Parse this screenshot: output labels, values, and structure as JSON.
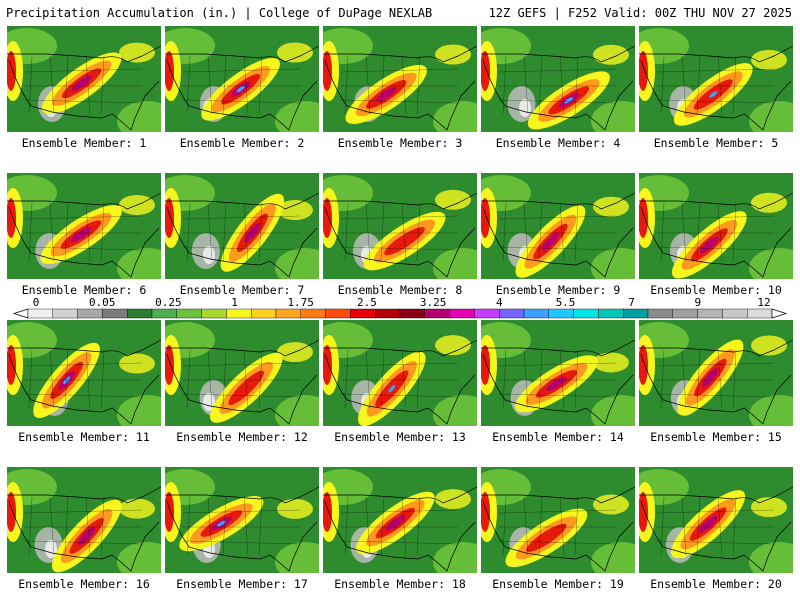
{
  "header": {
    "left": "Precipitation Accumulation (in.) | College of DuPage NEXLAB",
    "right": "12Z GEFS | F252 Valid: 00Z THU NOV 27 2025"
  },
  "colorbar": {
    "labels": [
      "0",
      "0.05",
      "0.25",
      "1",
      "1.75",
      "2.5",
      "3.25",
      "4",
      "5.5",
      "7",
      "9",
      "12"
    ],
    "colors": [
      "#f0f0f0",
      "#d2d2d2",
      "#a8a8a8",
      "#7c7c7c",
      "#2e7d32",
      "#4caf50",
      "#6cc23a",
      "#a8d830",
      "#f7f71e",
      "#ffd21e",
      "#ffa51e",
      "#ff7a14",
      "#ff4a0a",
      "#e6000a",
      "#b4000a",
      "#8a0014",
      "#b4006e",
      "#e600b4",
      "#c83cff",
      "#7864ff",
      "#3ca0ff",
      "#1ec8ff",
      "#00e6e6",
      "#00c8b4",
      "#00a0a0",
      "#8c8c8c",
      "#a0a0a0",
      "#b4b4b4",
      "#c8c8c8",
      "#dcdcdc"
    ]
  },
  "map_colors": {
    "background": "#2e8b2e",
    "light": "#6cc23a",
    "yellow": "#f7f71e",
    "orange": "#ff9a1e",
    "red": "#e6190a",
    "purple": "#b4006e",
    "blue": "#3ca0ff",
    "gray": "#bcbcbc",
    "white": "#f0f0f0"
  },
  "members": [
    {
      "label": "Ensemble Member: 1"
    },
    {
      "label": "Ensemble Member: 2"
    },
    {
      "label": "Ensemble Member: 3"
    },
    {
      "label": "Ensemble Member: 4"
    },
    {
      "label": "Ensemble Member: 5"
    },
    {
      "label": "Ensemble Member: 6"
    },
    {
      "label": "Ensemble Member: 7"
    },
    {
      "label": "Ensemble Member: 8"
    },
    {
      "label": "Ensemble Member: 9"
    },
    {
      "label": "Ensemble Member: 10"
    },
    {
      "label": "Ensemble Member: 11"
    },
    {
      "label": "Ensemble Member: 12"
    },
    {
      "label": "Ensemble Member: 13"
    },
    {
      "label": "Ensemble Member: 14"
    },
    {
      "label": "Ensemble Member: 15"
    },
    {
      "label": "Ensemble Member: 16"
    },
    {
      "label": "Ensemble Member: 17"
    },
    {
      "label": "Ensemble Member: 18"
    },
    {
      "label": "Ensemble Member: 19"
    },
    {
      "label": "Ensemble Member: 20"
    }
  ]
}
